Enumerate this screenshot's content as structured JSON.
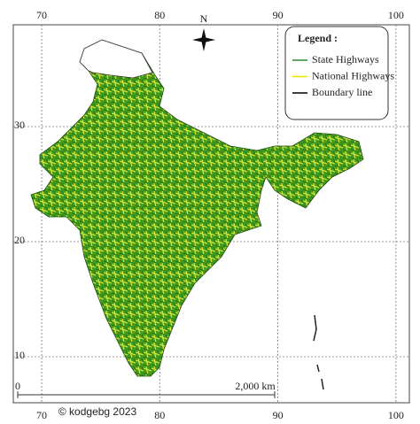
{
  "graticule": {
    "longitudes": [
      70,
      80,
      90,
      100
    ],
    "latitudes": [
      30,
      20,
      10
    ]
  },
  "north_label": "N",
  "legend": {
    "title": "Legend :",
    "items": [
      {
        "label": "State Highways",
        "color": "#2e8b2e"
      },
      {
        "label": "National Highways",
        "color": "#e6e600"
      },
      {
        "label": "Boundary line",
        "color": "#000000"
      }
    ]
  },
  "scale_bar": {
    "start": "0",
    "end": "2,000 km"
  },
  "credit": "© kodgebg 2023"
}
